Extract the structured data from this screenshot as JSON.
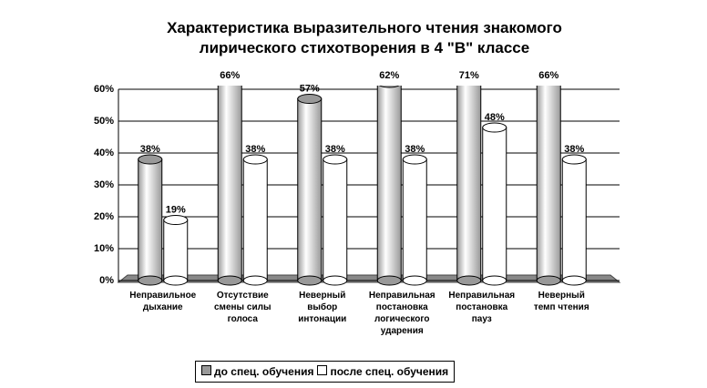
{
  "chart_data": {
    "type": "bar",
    "title": "Характеристика выразительного чтения знакомого\nлирического стихотворения в 4 \"В\" классе",
    "categories": [
      "Неправильное\nдыхание",
      "Отсутствие\nсмены силы\nголоса",
      "Неверный\nвыбор\nинтонации",
      "Неправильная\nпостановка\nлогического\nударения",
      "Неправильная\nпостановка\nпауз",
      "Неверный\nтемп чтения"
    ],
    "series": [
      {
        "name": "до спец. обучения",
        "color": "#999999",
        "values": [
          38,
          66,
          57,
          62,
          71,
          66
        ],
        "value_labels": [
          "38%",
          "66%",
          "57%",
          "62%",
          "71%",
          "66%"
        ]
      },
      {
        "name": "после спец. обучения",
        "color": "#ffffff",
        "values": [
          19,
          38,
          38,
          38,
          48,
          38
        ],
        "value_labels": [
          "19%",
          "38%",
          "38%",
          "38%",
          "48%",
          "38%"
        ]
      }
    ],
    "ylim": [
      0,
      60
    ],
    "yticks": [
      {
        "value": 0,
        "label": "0%"
      },
      {
        "value": 10,
        "label": "10%"
      },
      {
        "value": 20,
        "label": "20%"
      },
      {
        "value": 30,
        "label": "30%"
      },
      {
        "value": 40,
        "label": "40%"
      },
      {
        "value": 50,
        "label": "50%"
      },
      {
        "value": 60,
        "label": "60%"
      }
    ],
    "grid": true,
    "legend": "bottom"
  }
}
